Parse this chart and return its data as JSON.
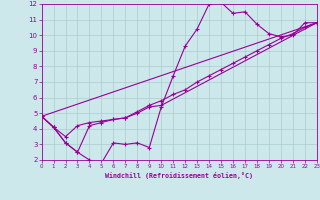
{
  "xlabel": "Windchill (Refroidissement éolien,°C)",
  "xlim": [
    0,
    23
  ],
  "ylim": [
    2,
    12
  ],
  "xticks": [
    0,
    1,
    2,
    3,
    4,
    5,
    6,
    7,
    8,
    9,
    10,
    11,
    12,
    13,
    14,
    15,
    16,
    17,
    18,
    19,
    20,
    21,
    22,
    23
  ],
  "yticks": [
    2,
    3,
    4,
    5,
    6,
    7,
    8,
    9,
    10,
    11,
    12
  ],
  "background_color": "#cce8ea",
  "line_color": "#990099",
  "grid_color": "#aacccc",
  "line1_x": [
    0,
    1,
    2,
    3,
    4,
    5,
    6,
    7,
    8,
    9,
    10,
    11,
    12,
    13,
    14,
    15,
    16,
    17,
    18,
    19,
    20,
    21,
    22,
    23
  ],
  "line1_y": [
    4.8,
    4.1,
    3.1,
    2.5,
    2.0,
    1.8,
    3.1,
    3.0,
    3.1,
    2.8,
    5.4,
    7.4,
    9.3,
    10.4,
    12.0,
    12.1,
    11.4,
    11.5,
    10.7,
    10.1,
    9.9,
    10.0,
    10.8,
    10.8
  ],
  "line2_x": [
    0,
    1,
    2,
    3,
    4,
    5,
    6,
    7,
    8,
    9,
    10,
    11,
    12,
    13,
    14,
    15,
    16,
    17,
    18,
    19,
    20,
    21,
    22,
    23
  ],
  "line2_y": [
    4.8,
    4.1,
    3.5,
    4.2,
    4.4,
    4.5,
    4.6,
    4.7,
    5.1,
    5.5,
    5.8,
    6.2,
    6.5,
    7.0,
    7.4,
    7.8,
    8.2,
    8.6,
    9.0,
    9.4,
    9.8,
    10.1,
    10.5,
    10.8
  ],
  "line3_x": [
    0,
    1,
    2,
    3,
    4,
    5,
    6,
    7,
    8,
    9,
    10,
    23
  ],
  "line3_y": [
    4.8,
    4.1,
    3.1,
    2.5,
    4.2,
    4.4,
    4.6,
    4.7,
    5.0,
    5.4,
    5.5,
    10.8
  ],
  "line4_x": [
    0,
    23
  ],
  "line4_y": [
    4.8,
    10.8
  ]
}
